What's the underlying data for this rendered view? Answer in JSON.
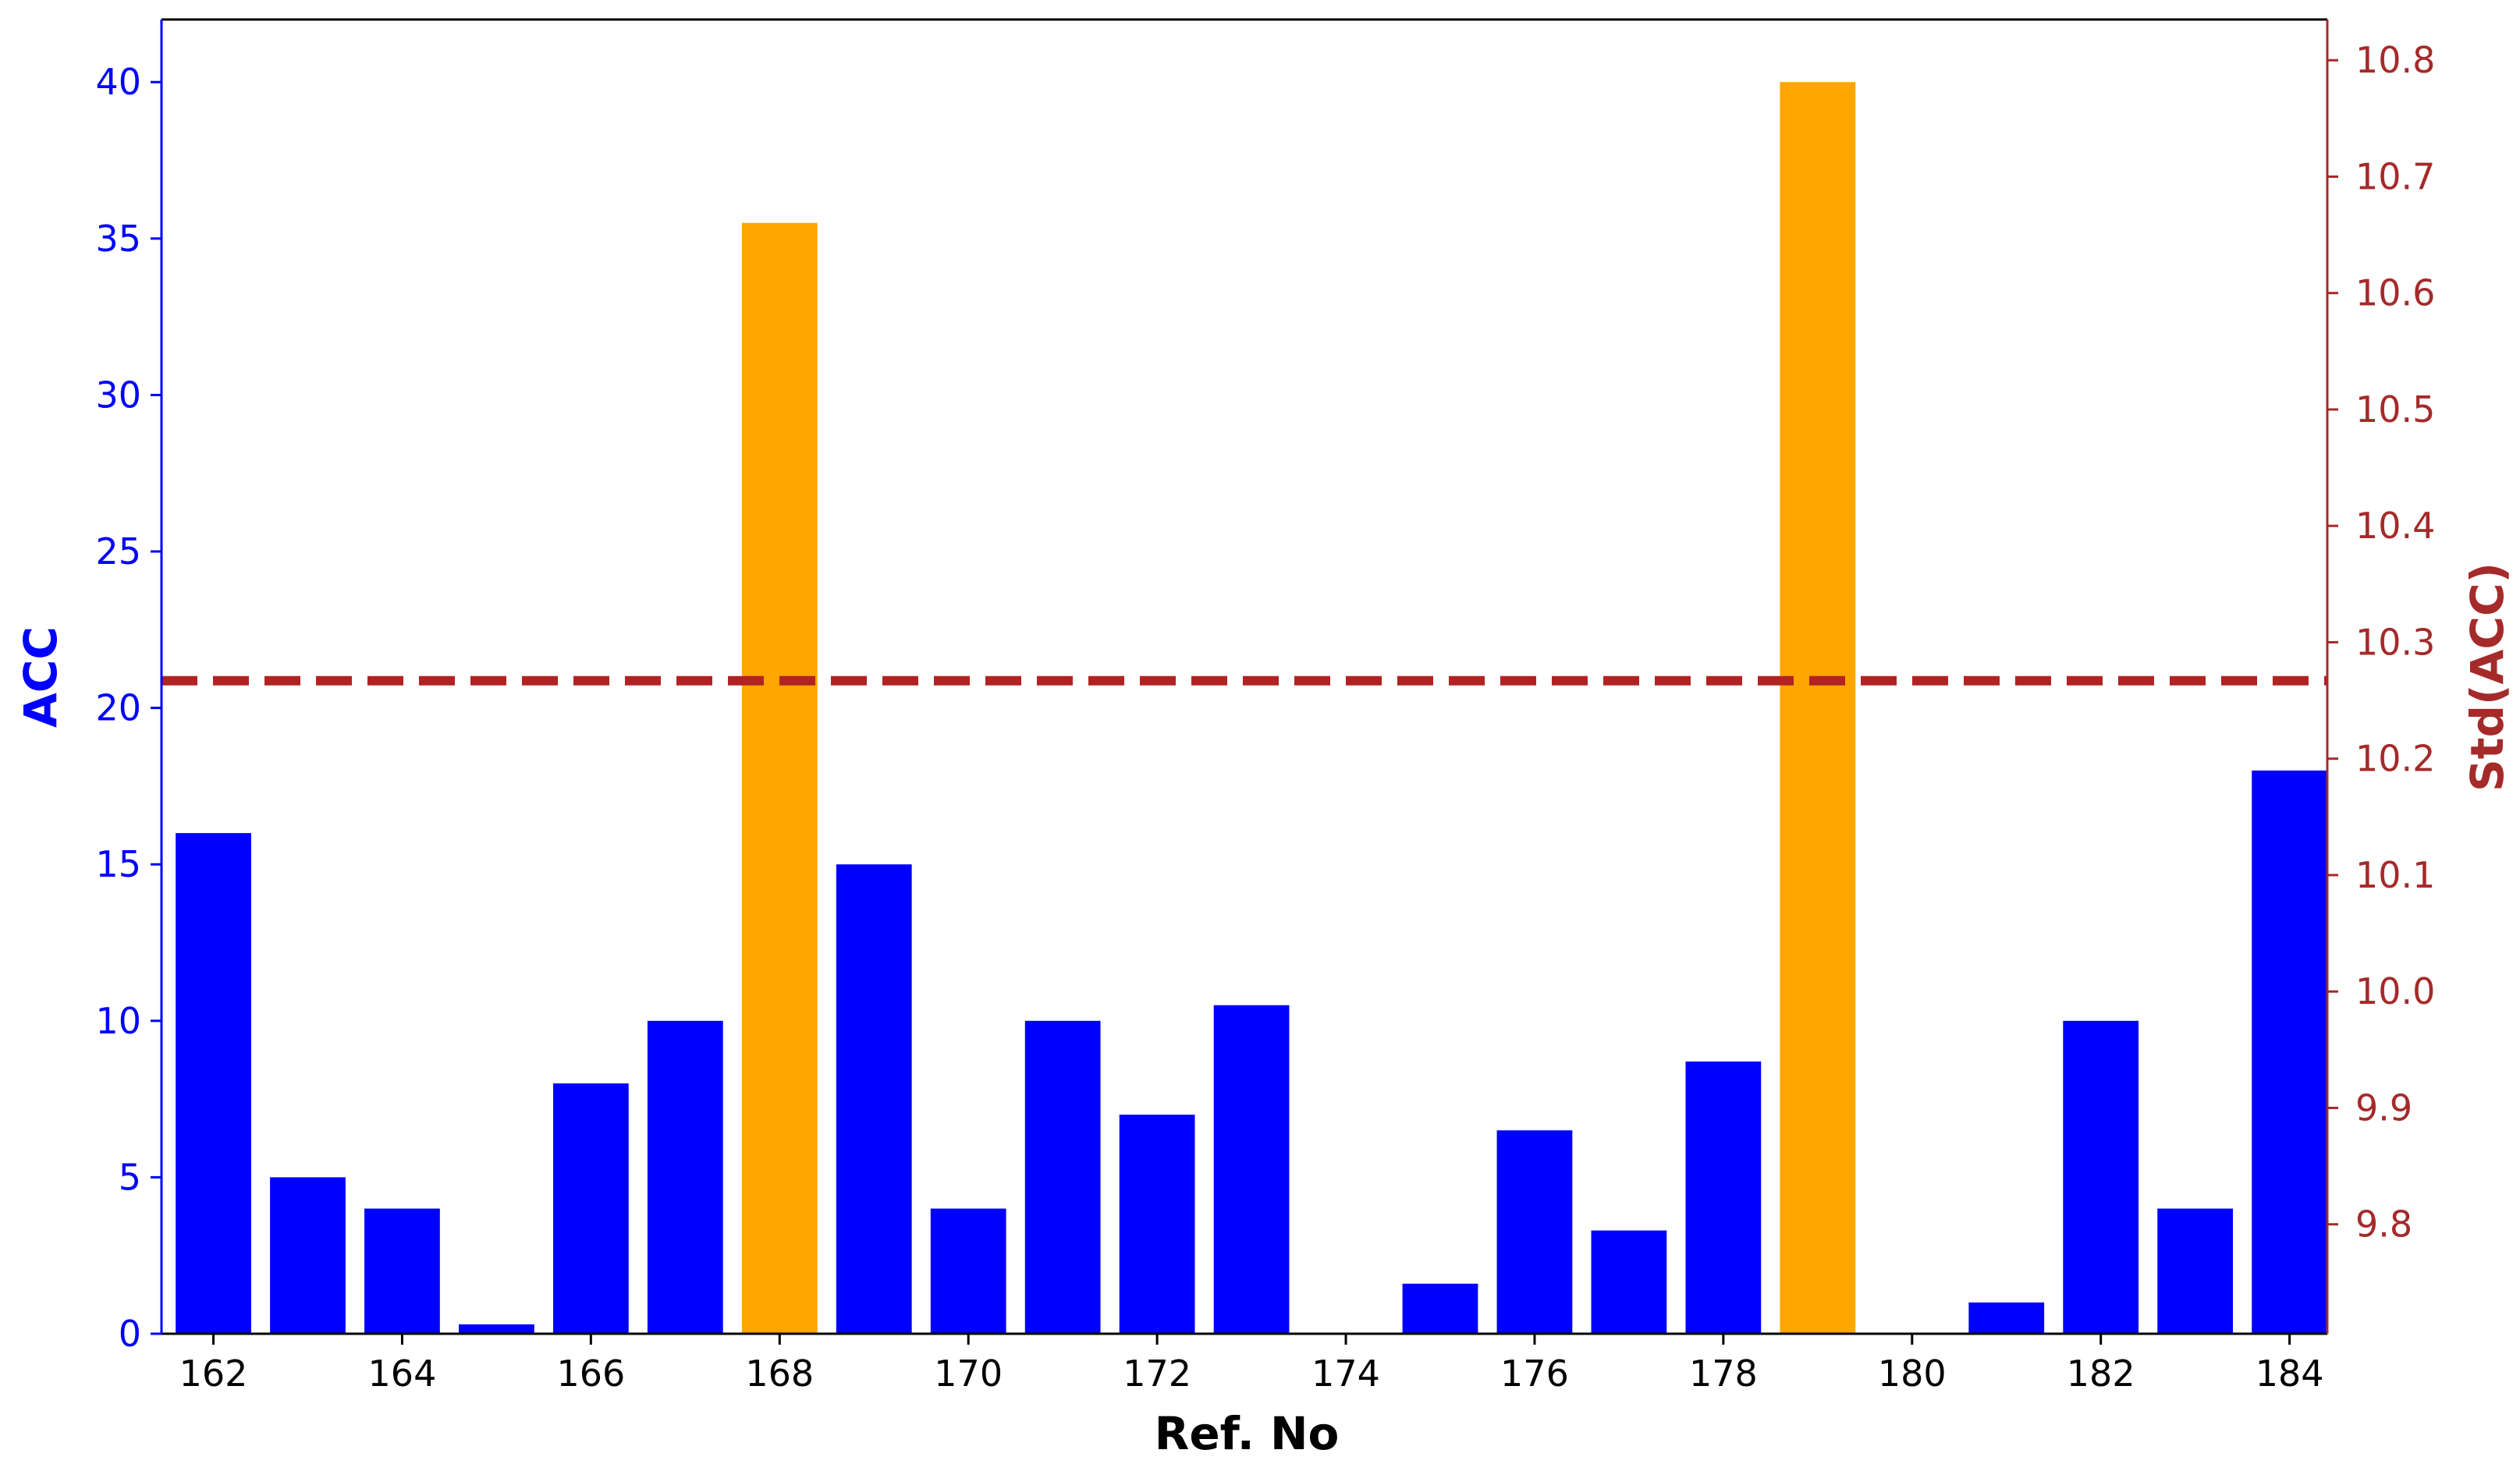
{
  "chart_data": {
    "type": "bar",
    "xlabel": "Ref. No",
    "ylabel_left": "ACC",
    "ylabel_right": "Std(ACC)",
    "categories": [
      162,
      163,
      164,
      165,
      166,
      167,
      168,
      169,
      170,
      171,
      172,
      173,
      174,
      175,
      176,
      177,
      178,
      179,
      180,
      181,
      182,
      183,
      184
    ],
    "values": [
      16,
      5,
      4,
      0.3,
      8,
      10,
      35.5,
      15,
      4,
      10,
      7,
      10.5,
      0,
      1.6,
      6.5,
      3.3,
      8.7,
      40,
      0,
      1,
      10,
      4,
      18
    ],
    "highlight": [
      168,
      179
    ],
    "x_ticks": [
      162,
      164,
      166,
      168,
      170,
      172,
      174,
      176,
      178,
      180,
      182,
      184
    ],
    "ylim_left": [
      0,
      42
    ],
    "y_ticks_left": [
      0,
      5,
      10,
      15,
      20,
      25,
      30,
      35,
      40
    ],
    "ylim_right": [
      9.706,
      10.835
    ],
    "y_ticks_right": [
      9.8,
      9.9,
      10.0,
      10.1,
      10.2,
      10.3,
      10.4,
      10.5,
      10.6,
      10.7,
      10.8
    ],
    "y_tick_labels_right": [
      "9.8",
      "9.9",
      "10.0",
      "10.1",
      "10.2",
      "10.3",
      "10.4",
      "10.5",
      "10.6",
      "10.7",
      "10.8"
    ],
    "reference_line": {
      "axis": "right",
      "value": 10.267,
      "style": "dashed"
    },
    "grid": false,
    "colors": {
      "bar": "#0000ff",
      "highlight": "#ffa500",
      "left_axis": "#0000ff",
      "right_axis": "#a52a2a",
      "line": "#b22222"
    }
  }
}
